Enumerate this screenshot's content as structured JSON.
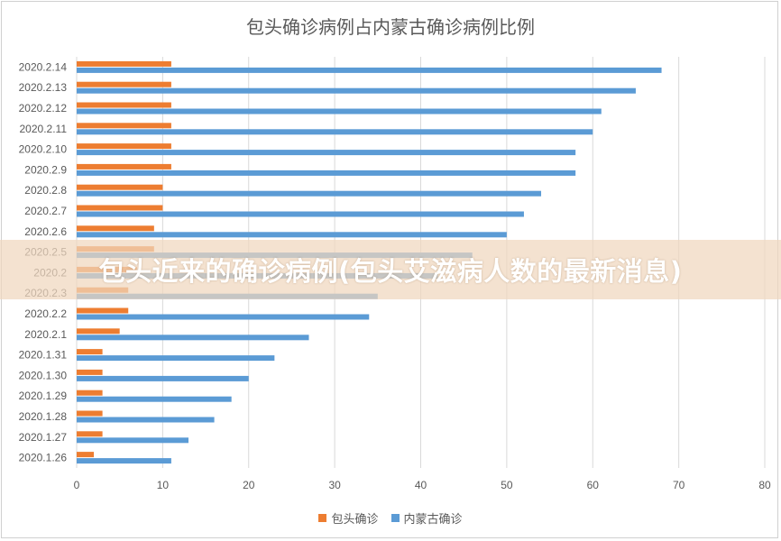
{
  "banner": {
    "text": "包头近来的确诊病例(包头艾滋病人数的最新消息)"
  },
  "chart_data": {
    "type": "bar",
    "orientation": "horizontal",
    "title": "包头确诊病例占内蒙古确诊病例比例",
    "categories": [
      "2020.2.14",
      "2020.2.13",
      "2020.2.12",
      "2020.2.11",
      "2020.2.10",
      "2020.2.9",
      "2020.2.8",
      "2020.2.7",
      "2020.2.6",
      "2020.2.5",
      "2020.2.4",
      "2020.2.3",
      "2020.2.2",
      "2020.2.1",
      "2020.1.31",
      "2020.1.30",
      "2020.1.29",
      "2020.1.28",
      "2020.1.27",
      "2020.1.26"
    ],
    "category_labels": [
      "2020.2.14",
      "2020.2.13",
      "2020.2.12",
      "2020.2.11",
      "2020.2.10",
      "2020.2.9",
      "2020.2.8",
      "2020.2.7",
      "2020.2.6",
      "2020.2.5",
      "2020.2",
      "2020.2.3",
      "2020.2.2",
      "2020.2.1",
      "2020.1.31",
      "2020.1.30",
      "2020.1.29",
      "2020.1.28",
      "2020.1.27",
      "2020.1.26"
    ],
    "series": [
      {
        "name": "包头确诊",
        "color": "#ED7D31",
        "values": [
          11,
          11,
          11,
          11,
          11,
          11,
          10,
          10,
          9,
          9,
          7,
          6,
          6,
          5,
          3,
          3,
          3,
          3,
          3,
          2
        ]
      },
      {
        "name": "内蒙古确诊",
        "color": "#5B9BD5",
        "values": [
          68,
          65,
          61,
          60,
          58,
          58,
          54,
          52,
          50,
          46,
          42,
          35,
          34,
          27,
          23,
          20,
          18,
          16,
          13,
          11
        ]
      }
    ],
    "xlim": [
      0,
      80
    ],
    "xticks": [
      0,
      10,
      20,
      30,
      40,
      50,
      60,
      70,
      80
    ],
    "grid": true,
    "legend_position": "bottom"
  }
}
